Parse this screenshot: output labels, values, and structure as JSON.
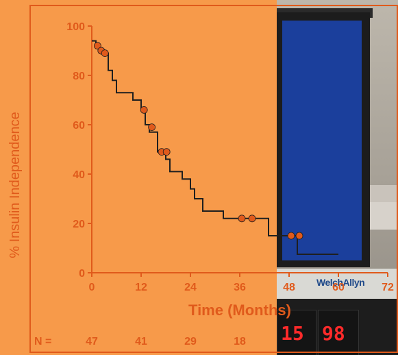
{
  "chart_data": {
    "type": "line",
    "title": "",
    "xlabel": "Time (Months)",
    "ylabel": "% Insulin Independence",
    "xlim": [
      0,
      72
    ],
    "ylim": [
      0,
      100
    ],
    "x_ticks": [
      "0",
      "12",
      "24",
      "36",
      "48",
      "60",
      "72"
    ],
    "y_ticks": [
      "0",
      "20",
      "40",
      "60",
      "80",
      "100"
    ],
    "step_curve": [
      [
        0,
        94
      ],
      [
        1,
        94
      ],
      [
        1,
        91
      ],
      [
        2,
        91
      ],
      [
        2,
        89
      ],
      [
        4,
        89
      ],
      [
        4,
        82
      ],
      [
        5,
        82
      ],
      [
        5,
        78
      ],
      [
        6,
        78
      ],
      [
        6,
        73
      ],
      [
        10,
        73
      ],
      [
        10,
        70
      ],
      [
        12,
        70
      ],
      [
        12,
        66
      ],
      [
        13,
        66
      ],
      [
        13,
        60
      ],
      [
        14,
        60
      ],
      [
        14,
        57
      ],
      [
        16,
        57
      ],
      [
        16,
        49
      ],
      [
        18,
        49
      ],
      [
        18,
        46
      ],
      [
        19,
        46
      ],
      [
        19,
        41
      ],
      [
        22,
        41
      ],
      [
        22,
        38
      ],
      [
        24,
        38
      ],
      [
        24,
        34
      ],
      [
        25,
        34
      ],
      [
        25,
        30
      ],
      [
        27,
        30
      ],
      [
        27,
        25
      ],
      [
        32,
        25
      ],
      [
        32,
        22
      ],
      [
        43,
        22
      ],
      [
        43,
        15
      ],
      [
        50,
        15
      ],
      [
        50,
        7.5
      ],
      [
        60,
        7.5
      ]
    ],
    "censored": [
      [
        1.4,
        92
      ],
      [
        2.3,
        90
      ],
      [
        3.2,
        89
      ],
      [
        12.7,
        66
      ],
      [
        14.6,
        59
      ],
      [
        17.0,
        49
      ],
      [
        18.2,
        49
      ],
      [
        36.5,
        22
      ],
      [
        39.0,
        22
      ],
      [
        48.5,
        15
      ],
      [
        50.5,
        15
      ]
    ],
    "numbers_at_risk": {
      "label": "N =",
      "values": [
        {
          "x": 0,
          "text": "47"
        },
        {
          "x": 12,
          "text": "41"
        },
        {
          "x": 24,
          "text": "29"
        },
        {
          "x": 36,
          "text": "18"
        }
      ]
    },
    "grid": false,
    "legend": "none"
  },
  "photo": {
    "brand": "WelchAllyn",
    "readout_left": "15",
    "readout_right": "98"
  },
  "colors": {
    "background": "#f79a4a",
    "axis": "#e05a1b",
    "tick_label": "#e05a1b",
    "curve": "#1f1f1f",
    "marker": "#e05a1b"
  }
}
